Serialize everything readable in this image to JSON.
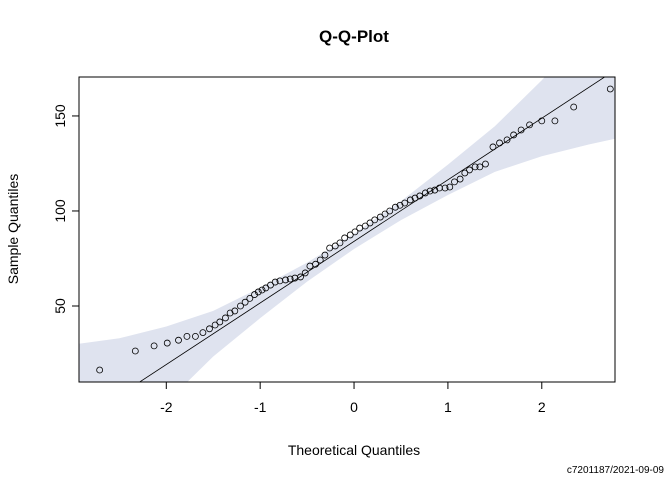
{
  "chart_data": {
    "type": "qqplot",
    "title": "Q-Q-Plot",
    "x_label": "Theoretical Quantiles",
    "y_label": "Sample Quantiles",
    "caption": "c7201187/2021-09-09",
    "x": [
      -2.71,
      -2.33,
      -2.13,
      -1.99,
      -1.87,
      -1.78,
      -1.69,
      -1.61,
      -1.54,
      -1.48,
      -1.43,
      -1.37,
      -1.32,
      -1.27,
      -1.21,
      -1.16,
      -1.11,
      -1.06,
      -1.02,
      -0.98,
      -0.94,
      -0.89,
      -0.84,
      -0.79,
      -0.73,
      -0.68,
      -0.63,
      -0.57,
      -0.52,
      -0.47,
      -0.41,
      -0.36,
      -0.31,
      -0.26,
      -0.2,
      -0.15,
      -0.1,
      -0.04,
      0.01,
      0.06,
      0.12,
      0.17,
      0.22,
      0.28,
      0.33,
      0.38,
      0.44,
      0.49,
      0.54,
      0.6,
      0.65,
      0.7,
      0.76,
      0.81,
      0.86,
      0.91,
      0.97,
      1.02,
      1.07,
      1.13,
      1.18,
      1.23,
      1.29,
      1.34,
      1.4,
      1.48,
      1.55,
      1.63,
      1.7,
      1.78,
      1.87,
      2.0,
      2.14,
      2.34,
      2.73
    ],
    "y": [
      16.3,
      26.3,
      29,
      30.5,
      32,
      34,
      34,
      36,
      38,
      40,
      41.6,
      43.7,
      46.3,
      47.4,
      50,
      52,
      54,
      56,
      57.4,
      58.4,
      59.5,
      61,
      62.6,
      63.2,
      63.7,
      64.2,
      64.7,
      65.3,
      67.4,
      71,
      72,
      74.2,
      76.8,
      80.5,
      81.6,
      83.2,
      85.8,
      87.4,
      89,
      91,
      92.1,
      93.7,
      95.3,
      96.8,
      98.4,
      100,
      102,
      103,
      104.2,
      105.8,
      106.8,
      107.9,
      109.5,
      110.5,
      111,
      112.1,
      112.1,
      112.6,
      115.3,
      116.8,
      120,
      121.6,
      123.2,
      123.2,
      124.7,
      133.7,
      135.8,
      137.4,
      140,
      142.6,
      145.3,
      147.4,
      147.4,
      154.7,
      164.2
    ],
    "line": {
      "intercept": 84,
      "slope": 32.4
    },
    "band": {
      "color": "#dfe3ef",
      "x": [
        -2.93,
        -2.5,
        -2,
        -1.5,
        -1,
        -0.5,
        0,
        0.5,
        1,
        1.5,
        2,
        2.5,
        2.78
      ],
      "lower": [
        -51.9,
        -27,
        -0.8,
        23.4,
        43.6,
        62.8,
        80,
        95.2,
        108.4,
        120.6,
        128.8,
        135,
        138
      ],
      "upper": [
        30.1,
        33,
        39.2,
        47.4,
        59.6,
        72.8,
        88,
        105.2,
        124.4,
        144.6,
        168.8,
        195,
        210
      ]
    },
    "xlim": [
      -2.93,
      2.78
    ],
    "ylim": [
      10,
      170.5
    ],
    "xticks": [
      -2,
      -1,
      0,
      1,
      2
    ],
    "yticks": [
      50,
      100,
      150
    ]
  }
}
